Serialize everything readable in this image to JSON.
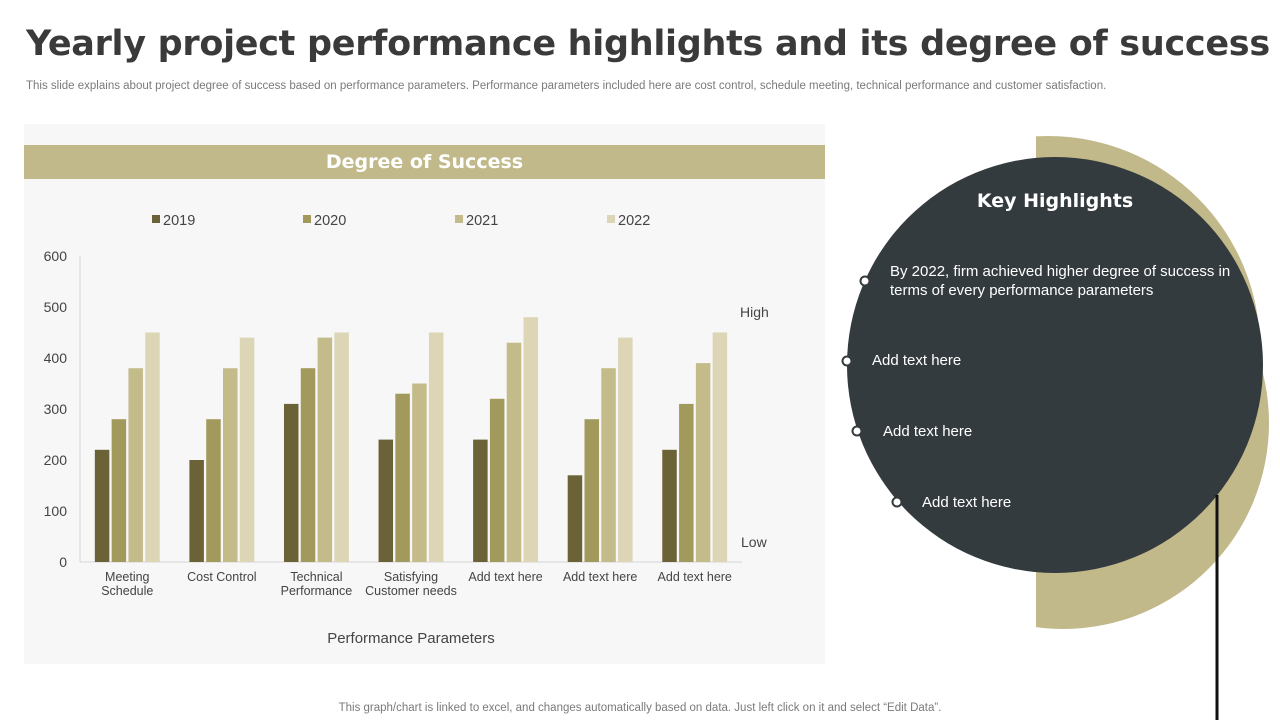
{
  "title": "Yearly project performance highlights and its degree of success",
  "subtitle": "This slide explains about project degree of success based on performance parameters. Performance parameters included here are cost control, schedule meeting, technical performance and customer satisfaction.",
  "chart_header": "Degree of Success",
  "footer": "This graph/chart is linked to excel,  and changes automatically based on data. Just left click on it and select “Edit Data”.",
  "colors": {
    "accent": "#c2b98a",
    "dark_panel": "#343b3e",
    "series": [
      "#6b6238",
      "#a29a5c",
      "#c4bb8a",
      "#dcd6b6"
    ]
  },
  "key_highlights": {
    "title": "Key Highlights",
    "items": [
      "By 2022, firm achieved higher degree of success in terms of every performance parameters",
      "Add text here",
      "Add text here",
      "Add text here"
    ]
  },
  "chart_data": {
    "type": "bar",
    "title": "Degree of Success",
    "xlabel": "Performance Parameters",
    "ylabel": "",
    "ylim": [
      0,
      600
    ],
    "yticks": [
      0,
      100,
      200,
      300,
      400,
      500,
      600
    ],
    "legend_position": "top",
    "grid": false,
    "categories": [
      "Meeting Schedule",
      "Cost Control",
      "Technical Performance",
      "Satisfying Customer needs",
      "Add text here",
      "Add text here",
      "Add text here"
    ],
    "category_lines": [
      [
        "Meeting",
        "Schedule"
      ],
      [
        "Cost Control"
      ],
      [
        "Technical",
        "Performance"
      ],
      [
        "Satisfying",
        "Customer needs"
      ],
      [
        "Add text here"
      ],
      [
        "Add text here"
      ],
      [
        "Add text here"
      ]
    ],
    "series": [
      {
        "name": "2019",
        "values": [
          220,
          200,
          310,
          240,
          240,
          170,
          220
        ]
      },
      {
        "name": "2020",
        "values": [
          280,
          280,
          380,
          330,
          320,
          280,
          310
        ]
      },
      {
        "name": "2021",
        "values": [
          380,
          380,
          440,
          350,
          430,
          380,
          390
        ]
      },
      {
        "name": "2022",
        "values": [
          450,
          440,
          450,
          450,
          480,
          440,
          450
        ]
      }
    ],
    "annotations": {
      "high": "High",
      "low": "Low"
    }
  }
}
